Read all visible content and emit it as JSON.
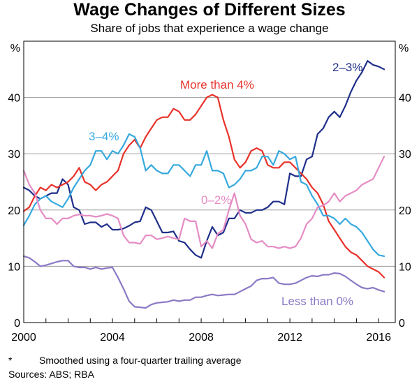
{
  "chart_data": {
    "type": "line",
    "title": "Wage Changes of Different Sizes",
    "subtitle": "Share of jobs that experience a wage change",
    "ylabel_left": "%",
    "ylabel_right": "%",
    "ylim": [
      0,
      50
    ],
    "xlim": [
      2000,
      2016.75
    ],
    "yticks": [
      0,
      10,
      20,
      30,
      40
    ],
    "xticks": [
      2000,
      2004,
      2008,
      2012,
      2016
    ],
    "grid": "horizontal",
    "series": [
      {
        "name": "2–3%",
        "label": "2–3%",
        "color": "#1f2f8a",
        "x": [
          2000,
          2000.25,
          2000.5,
          2000.75,
          2001,
          2001.25,
          2001.5,
          2001.75,
          2002,
          2002.25,
          2002.5,
          2002.75,
          2003,
          2003.25,
          2003.5,
          2003.75,
          2004,
          2004.25,
          2004.5,
          2004.75,
          2005,
          2005.25,
          2005.5,
          2005.75,
          2006,
          2006.25,
          2006.5,
          2006.75,
          2007,
          2007.25,
          2007.5,
          2007.75,
          2008,
          2008.25,
          2008.5,
          2008.75,
          2009,
          2009.25,
          2009.5,
          2009.75,
          2010,
          2010.25,
          2010.5,
          2010.75,
          2011,
          2011.25,
          2011.5,
          2011.75,
          2012,
          2012.25,
          2012.5,
          2012.75,
          2013,
          2013.25,
          2013.5,
          2013.75,
          2014,
          2014.25,
          2014.5,
          2014.75,
          2015,
          2015.25,
          2015.5,
          2015.75,
          2016,
          2016.25
        ],
        "values": [
          24,
          23.5,
          22.5,
          22,
          22.5,
          23,
          23,
          25.5,
          24.5,
          20.5,
          20,
          17.5,
          17.8,
          17.8,
          17,
          17.5,
          16.5,
          16.5,
          16.7,
          17.2,
          17.8,
          18,
          20.5,
          20,
          18,
          16,
          16,
          16.2,
          14.5,
          14.2,
          13,
          12,
          11.5,
          14.5,
          17,
          15.5,
          16,
          18.5,
          18.5,
          20,
          19.5,
          19.5,
          20,
          20,
          20.5,
          21.5,
          21.5,
          21,
          26.5,
          26,
          26,
          29,
          29.5,
          33.5,
          34.5,
          36.5,
          37.5,
          36.5,
          38.5,
          41,
          43,
          44.5,
          46.5,
          45.8,
          45.5,
          45
        ]
      },
      {
        "name": "More than 4%",
        "label": "More than 4%",
        "color": "#e8322a",
        "x": [
          2000,
          2000.25,
          2000.5,
          2000.75,
          2001,
          2001.25,
          2001.5,
          2001.75,
          2002,
          2002.25,
          2002.5,
          2002.75,
          2003,
          2003.25,
          2003.5,
          2003.75,
          2004,
          2004.25,
          2004.5,
          2004.75,
          2005,
          2005.25,
          2005.5,
          2005.75,
          2006,
          2006.25,
          2006.5,
          2006.75,
          2007,
          2007.25,
          2007.5,
          2007.75,
          2008,
          2008.25,
          2008.5,
          2008.75,
          2009,
          2009.25,
          2009.5,
          2009.75,
          2010,
          2010.25,
          2010.5,
          2010.75,
          2011,
          2011.25,
          2011.5,
          2011.75,
          2012,
          2012.25,
          2012.5,
          2012.75,
          2013,
          2013.25,
          2013.5,
          2013.75,
          2014,
          2014.25,
          2014.5,
          2014.75,
          2015,
          2015.25,
          2015.5,
          2015.75,
          2016,
          2016.25
        ],
        "values": [
          19.8,
          20.5,
          22.5,
          24,
          23.5,
          24.5,
          24,
          24.5,
          25,
          26,
          27.5,
          25,
          24.5,
          23.5,
          24.5,
          25,
          26,
          27,
          30,
          31.5,
          32.5,
          31,
          33,
          34.5,
          36,
          36.5,
          36.5,
          38,
          37.5,
          36,
          36,
          37,
          38.5,
          40,
          40.5,
          40,
          36,
          33,
          29,
          27.5,
          28.5,
          30.5,
          31,
          30.5,
          28,
          27.5,
          27.5,
          28.5,
          28.5,
          27.5,
          26.5,
          25.5,
          24,
          23,
          21,
          18,
          16.5,
          15,
          13.5,
          12.5,
          12,
          11,
          10,
          9.5,
          9,
          8
        ]
      },
      {
        "name": "3–4%",
        "label": "3–4%",
        "color": "#36a9df",
        "x": [
          2000,
          2000.25,
          2000.5,
          2000.75,
          2001,
          2001.25,
          2001.5,
          2001.75,
          2002,
          2002.25,
          2002.5,
          2002.75,
          2003,
          2003.25,
          2003.5,
          2003.75,
          2004,
          2004.25,
          2004.5,
          2004.75,
          2005,
          2005.25,
          2005.5,
          2005.75,
          2006,
          2006.25,
          2006.5,
          2006.75,
          2007,
          2007.25,
          2007.5,
          2007.75,
          2008,
          2008.25,
          2008.5,
          2008.75,
          2009,
          2009.25,
          2009.5,
          2009.75,
          2010,
          2010.25,
          2010.5,
          2010.75,
          2011,
          2011.25,
          2011.5,
          2011.75,
          2012,
          2012.25,
          2012.5,
          2012.75,
          2013,
          2013.25,
          2013.5,
          2013.75,
          2014,
          2014.25,
          2014.5,
          2014.75,
          2015,
          2015.25,
          2015.5,
          2015.75,
          2016,
          2016.25
        ],
        "values": [
          17.3,
          19,
          21,
          22,
          22.5,
          21.5,
          21,
          20.5,
          22,
          24,
          25.5,
          27,
          28,
          30.5,
          30.5,
          29,
          30.5,
          30,
          31.5,
          33.5,
          33,
          31,
          27,
          28,
          27,
          26.5,
          26.5,
          28,
          28,
          27,
          26,
          28,
          28,
          30.5,
          27,
          27,
          26.5,
          24,
          24.5,
          25.5,
          27,
          27,
          27.5,
          29.5,
          29.5,
          28,
          30.5,
          30,
          29,
          29.5,
          25,
          24.5,
          22.5,
          21,
          19,
          19,
          18.5,
          17.5,
          18.5,
          17.5,
          17,
          16,
          14.5,
          13,
          12,
          11.8
        ]
      },
      {
        "name": "0–2%",
        "label": "0–2%",
        "color": "#e58cc4",
        "x": [
          2000,
          2000.25,
          2000.5,
          2000.75,
          2001,
          2001.25,
          2001.5,
          2001.75,
          2002,
          2002.25,
          2002.5,
          2002.75,
          2003,
          2003.25,
          2003.5,
          2003.75,
          2004,
          2004.25,
          2004.5,
          2004.75,
          2005,
          2005.25,
          2005.5,
          2005.75,
          2006,
          2006.25,
          2006.5,
          2006.75,
          2007,
          2007.25,
          2007.5,
          2007.75,
          2008,
          2008.25,
          2008.5,
          2008.75,
          2009,
          2009.25,
          2009.5,
          2009.75,
          2010,
          2010.25,
          2010.5,
          2010.75,
          2011,
          2011.25,
          2011.5,
          2011.75,
          2012,
          2012.25,
          2012.5,
          2012.75,
          2013,
          2013.25,
          2013.5,
          2013.75,
          2014,
          2014.25,
          2014.5,
          2014.75,
          2015,
          2015.25,
          2015.5,
          2015.75,
          2016,
          2016.25
        ],
        "values": [
          27,
          24.5,
          23,
          20,
          18.5,
          18.5,
          17.5,
          18.5,
          18.5,
          19,
          19.2,
          19,
          19,
          18.8,
          19,
          19.3,
          19,
          18.5,
          15.5,
          14.2,
          14.2,
          14,
          15.5,
          15.5,
          14.8,
          15,
          15.3,
          15,
          14.8,
          18.5,
          18,
          18,
          13.5,
          14.5,
          13.2,
          15.8,
          16.5,
          20,
          23,
          19,
          17.5,
          14.8,
          14.2,
          14.5,
          13.5,
          13.5,
          13.2,
          13.5,
          13.2,
          13.5,
          15,
          17.5,
          18.5,
          20.5,
          20.8,
          21.5,
          23,
          21.5,
          22.5,
          23,
          23.5,
          24.5,
          25,
          25.5,
          27.5,
          29.5
        ]
      },
      {
        "name": "Less than 0%",
        "label": "Less than 0%",
        "color": "#8b79c5",
        "x": [
          2000,
          2000.25,
          2000.5,
          2000.75,
          2001,
          2001.25,
          2001.5,
          2001.75,
          2002,
          2002.25,
          2002.5,
          2002.75,
          2003,
          2003.25,
          2003.5,
          2003.75,
          2004,
          2004.25,
          2004.5,
          2004.75,
          2005,
          2005.25,
          2005.5,
          2005.75,
          2006,
          2006.25,
          2006.5,
          2006.75,
          2007,
          2007.25,
          2007.5,
          2007.75,
          2008,
          2008.25,
          2008.5,
          2008.75,
          2009,
          2009.25,
          2009.5,
          2009.75,
          2010,
          2010.25,
          2010.5,
          2010.75,
          2011,
          2011.25,
          2011.5,
          2011.75,
          2012,
          2012.25,
          2012.5,
          2012.75,
          2013,
          2013.25,
          2013.5,
          2013.75,
          2014,
          2014.25,
          2014.5,
          2014.75,
          2015,
          2015.25,
          2015.5,
          2015.75,
          2016,
          2016.25
        ],
        "values": [
          11.8,
          11.5,
          10.8,
          10,
          10.2,
          10.5,
          10.8,
          11,
          11,
          10,
          9.8,
          9.8,
          9.5,
          9.8,
          9.5,
          9.7,
          9.8,
          8,
          6,
          3.8,
          2.8,
          2.7,
          2.6,
          3.2,
          3.5,
          3.6,
          3.7,
          4,
          3.8,
          4,
          4,
          4.5,
          4.5,
          4.8,
          5,
          4.8,
          4.9,
          5,
          5,
          5.5,
          6,
          6.5,
          7.5,
          7.8,
          7.8,
          8,
          7,
          6.8,
          6.8,
          7,
          7.5,
          8,
          8.3,
          8.2,
          8.5,
          8.5,
          8.8,
          8.7,
          8.2,
          7.5,
          6.8,
          6.2,
          6,
          6.2,
          5.8,
          5.5
        ]
      }
    ]
  },
  "footnote": {
    "marker": "*",
    "text": "Smoothed using a four-quarter trailing average"
  },
  "sources": "Sources:   ABS; RBA"
}
